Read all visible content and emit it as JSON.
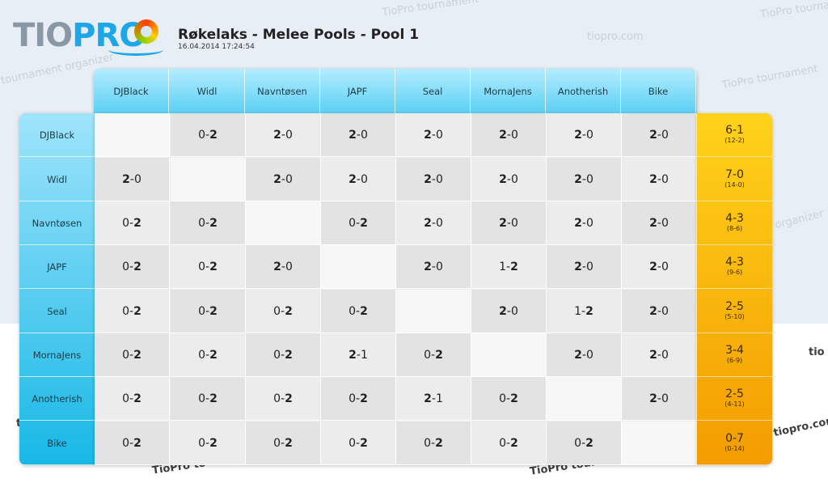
{
  "watermarks": {
    "site_1": "TioPro tournament",
    "site_2": "TioPro tournam",
    "url_1": "tiopro.com",
    "tagline_1": "tournament organizer",
    "tagline_2": "TioPro tournament",
    "tagline_3": "tournament organizer",
    "tagline_4": "organizer",
    "url_2": "tio",
    "url_3": "tiopro.com",
    "bottom_1": "TioPro to",
    "bottom_2": "TioPro tour",
    "left_bottom": "t"
  },
  "logo": {
    "tio": "TIO",
    "pro": "PRO"
  },
  "header": {
    "title": "Røkelaks - Melee Pools - Pool 1",
    "timestamp": "16.04.2014 17:24:54"
  },
  "players": [
    "DJBlack",
    "Widl",
    "Navntøsen",
    "JAPF",
    "Seal",
    "MornaJens",
    "Anotherish",
    "Bike"
  ],
  "results": [
    [
      "",
      "0-2",
      "2-0",
      "2-0",
      "2-0",
      "2-0",
      "2-0",
      "2-0"
    ],
    [
      "2-0",
      "",
      "2-0",
      "2-0",
      "2-0",
      "2-0",
      "2-0",
      "2-0"
    ],
    [
      "0-2",
      "0-2",
      "",
      "0-2",
      "2-0",
      "2-0",
      "2-0",
      "2-0"
    ],
    [
      "0-2",
      "0-2",
      "2-0",
      "",
      "2-0",
      "1-2",
      "2-0",
      "2-0"
    ],
    [
      "0-2",
      "0-2",
      "0-2",
      "0-2",
      "",
      "2-0",
      "1-2",
      "2-0"
    ],
    [
      "0-2",
      "0-2",
      "0-2",
      "2-1",
      "0-2",
      "",
      "2-0",
      "2-0"
    ],
    [
      "0-2",
      "0-2",
      "0-2",
      "0-2",
      "2-1",
      "0-2",
      "",
      "2-0"
    ],
    [
      "0-2",
      "0-2",
      "0-2",
      "0-2",
      "0-2",
      "0-2",
      "0-2",
      ""
    ]
  ],
  "totals": [
    {
      "record": "6-1",
      "games": "(12-2)"
    },
    {
      "record": "7-0",
      "games": "(14-0)"
    },
    {
      "record": "4-3",
      "games": "(8-6)"
    },
    {
      "record": "4-3",
      "games": "(9-6)"
    },
    {
      "record": "2-5",
      "games": "(5-10)"
    },
    {
      "record": "3-4",
      "games": "(6-9)"
    },
    {
      "record": "2-5",
      "games": "(4-11)"
    },
    {
      "record": "0-7",
      "games": "(0-14)"
    }
  ],
  "colors": {
    "header_blue_top": "#b3ecff",
    "header_blue_bottom": "#17b8e6",
    "totals_gold_top": "#ffd21a",
    "totals_gold_bottom": "#f39c00"
  }
}
